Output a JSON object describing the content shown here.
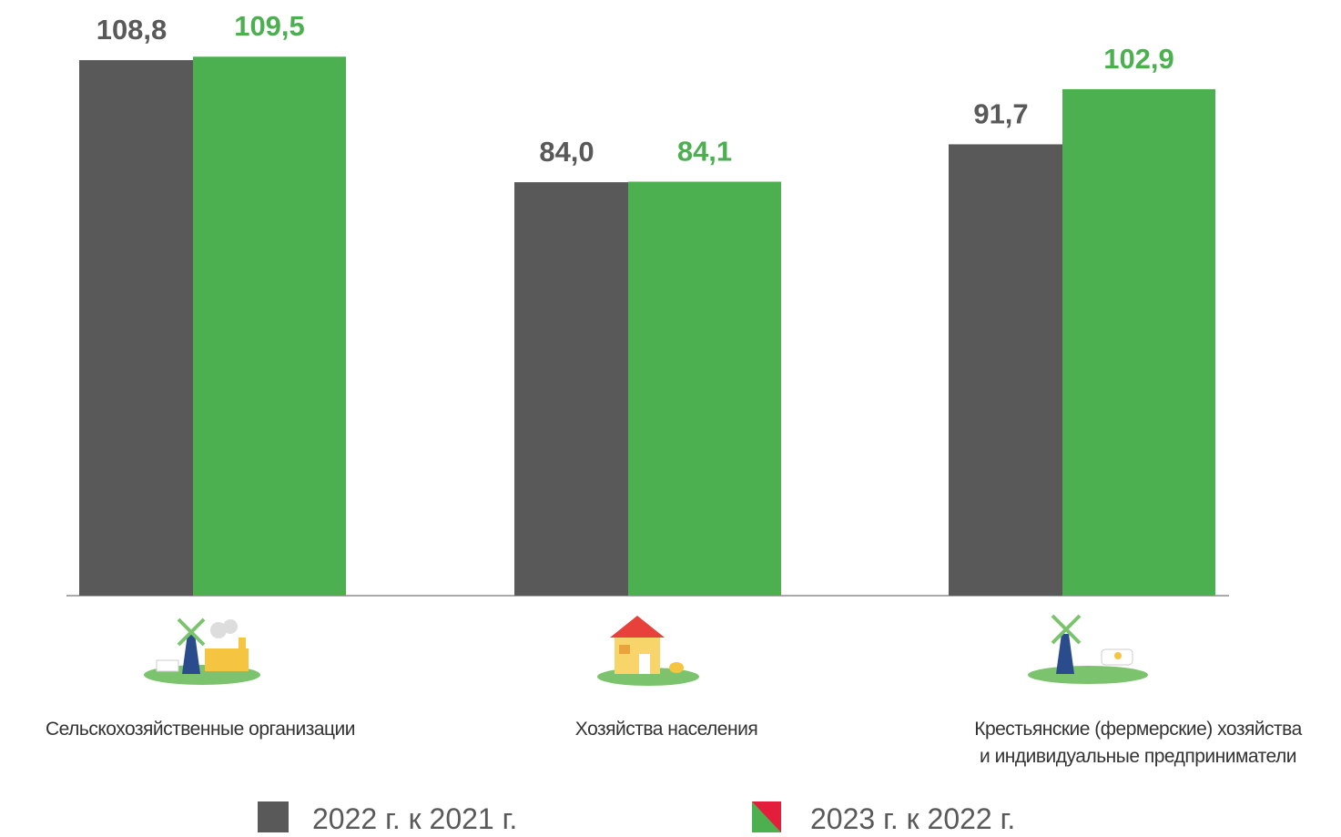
{
  "chart_data": {
    "type": "bar",
    "categories": [
      "Сельскохозяйственные организации",
      "Хозяйства населения",
      "Крестьянские (фермерские) хозяйства\nи индивидуальные предприниматели"
    ],
    "series": [
      {
        "name": "2022 г. к 2021 г.",
        "color": "#595959",
        "values": [
          108.8,
          84.0,
          91.7
        ],
        "value_labels": [
          "108,8",
          "84,0",
          "91,7"
        ]
      },
      {
        "name": "2023 г. к 2022 г.",
        "color": "#4caf50",
        "values": [
          109.5,
          84.1,
          102.9
        ],
        "value_labels": [
          "109,5",
          "84,1",
          "102,9"
        ]
      }
    ],
    "ylim": [
      0,
      120
    ]
  }
}
